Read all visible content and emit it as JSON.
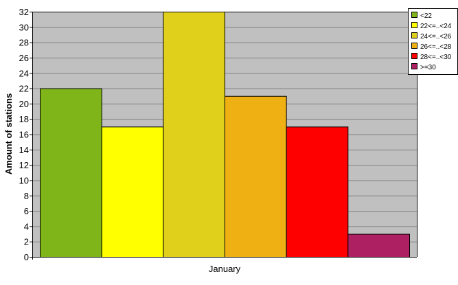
{
  "chart_data": {
    "type": "bar",
    "categories": [
      "January"
    ],
    "series": [
      {
        "name": "<22",
        "values": [
          22
        ],
        "color": "#7fb518"
      },
      {
        "name": "22<=..<24",
        "values": [
          17
        ],
        "color": "#ffff00"
      },
      {
        "name": "24<=..<26",
        "values": [
          32
        ],
        "color": "#e0d01c"
      },
      {
        "name": "26<=..<28",
        "values": [
          21
        ],
        "color": "#eeb013"
      },
      {
        "name": "28<=..<30",
        "values": [
          17
        ],
        "color": "#ff0000"
      },
      {
        "name": ">=30",
        "values": [
          3
        ],
        "color": "#ad2062"
      }
    ],
    "ylabel": "Amount of stations",
    "xlabel": "",
    "ylim": [
      0,
      32
    ],
    "yticks": [
      0,
      2,
      4,
      6,
      8,
      10,
      12,
      14,
      16,
      18,
      20,
      22,
      24,
      26,
      28,
      30,
      32
    ],
    "grid": true,
    "legend_position": "top-right",
    "plot_background": "#c0c0c0"
  }
}
